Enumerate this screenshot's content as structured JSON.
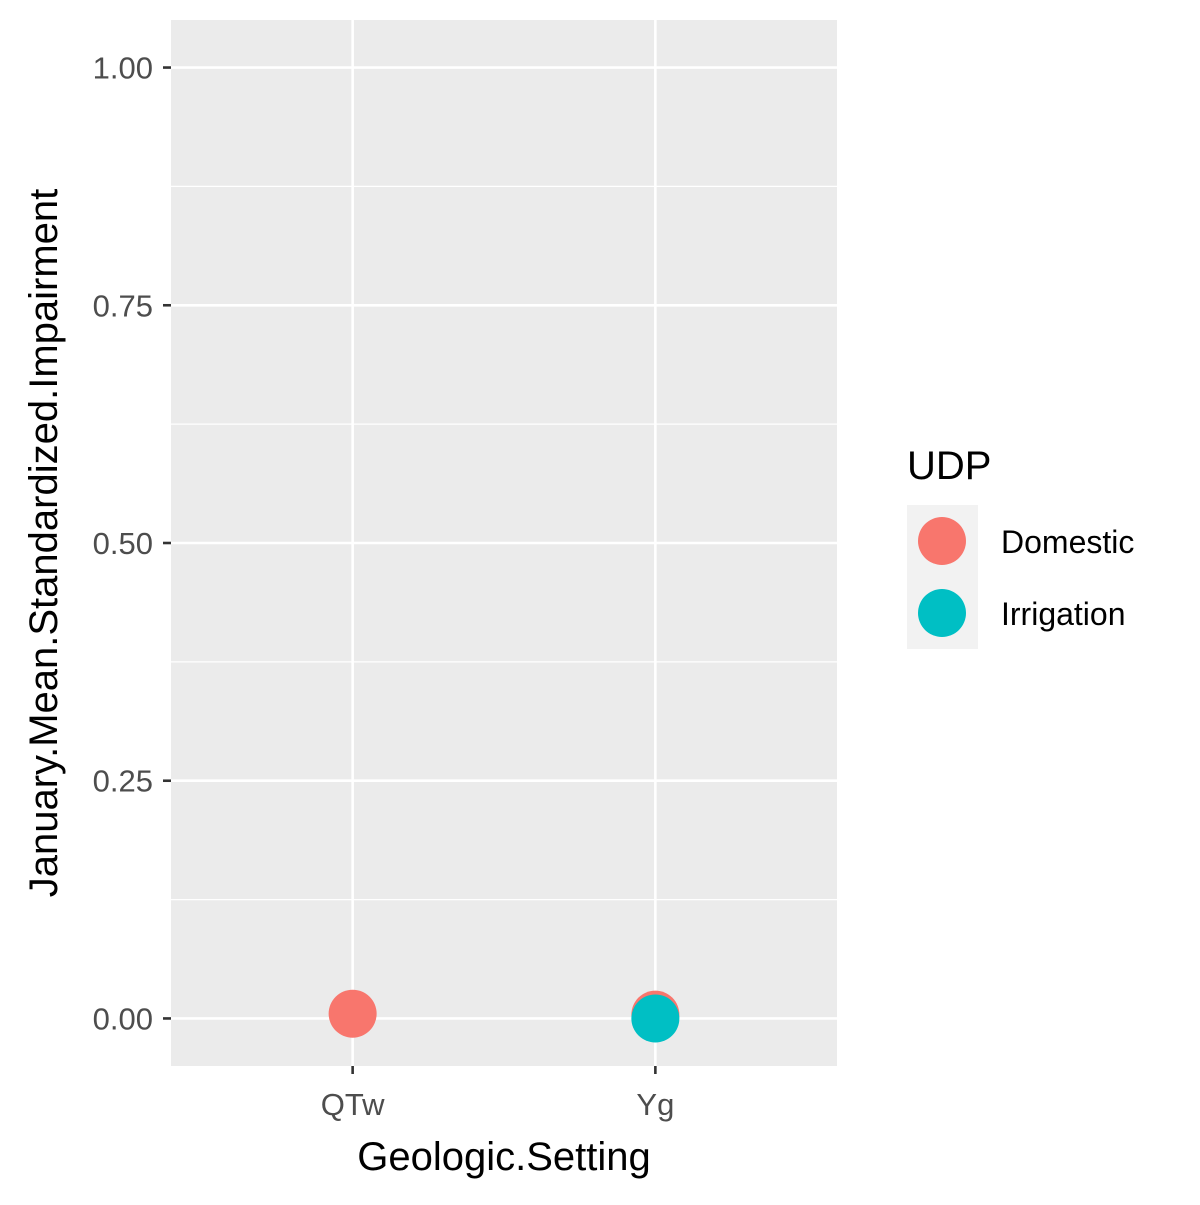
{
  "chart_data": {
    "type": "scatter",
    "xlabel": "Geologic.Setting",
    "ylabel": "January.Mean.Standardized.Impairment",
    "categories": [
      "QTw",
      "Yg"
    ],
    "ylim": [
      -0.05,
      1.05
    ],
    "y_ticks": [
      0.0,
      0.25,
      0.5,
      0.75,
      1.0
    ],
    "y_tick_labels": [
      "0.00",
      "0.25",
      "0.50",
      "0.75",
      "1.00"
    ],
    "grid": true,
    "series": [
      {
        "name": "Domestic",
        "color": "#F8766D",
        "points": [
          {
            "x": "QTw",
            "y": 0.005
          },
          {
            "x": "Yg",
            "y": 0.004
          }
        ]
      },
      {
        "name": "Irrigation",
        "color": "#00BFC4",
        "points": [
          {
            "x": "Yg",
            "y": 0.0
          }
        ]
      }
    ],
    "legend": {
      "title": "UDP",
      "position": "right",
      "items": [
        "Domestic",
        "Irrigation"
      ]
    }
  }
}
